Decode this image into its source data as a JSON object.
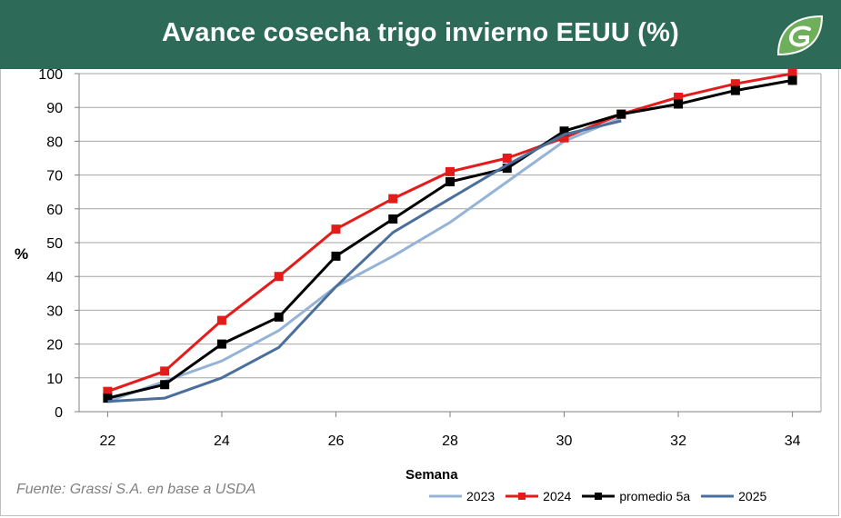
{
  "title": "Avance cosecha trigo invierno EEUU (%)",
  "source": "Fuente: Grassi S.A. en base a USDA",
  "logo_icon": "grassi-leaf-logo",
  "colors": {
    "header": "#2d6a57",
    "grid": "#a6a6a6"
  },
  "chart_data": {
    "type": "line",
    "title": "Avance cosecha trigo invierno EEUU (%)",
    "xlabel": "Semana",
    "ylabel": "%",
    "xlim": [
      21.5,
      34.5
    ],
    "ylim": [
      0,
      100
    ],
    "x_ticks": [
      22,
      24,
      26,
      28,
      30,
      32,
      34
    ],
    "y_ticks": [
      0,
      10,
      20,
      30,
      40,
      50,
      60,
      70,
      80,
      90,
      100
    ],
    "grid": true,
    "legend_position": "bottom",
    "series": [
      {
        "name": "2023",
        "color": "#95b3d7",
        "marker": "none",
        "x": [
          22,
          23,
          24,
          25,
          26,
          27,
          28,
          29,
          30,
          31
        ],
        "y": [
          3,
          9,
          15,
          24,
          37,
          46,
          56,
          68,
          80,
          87
        ]
      },
      {
        "name": "2024",
        "color": "#e41b1b",
        "marker": "square",
        "x": [
          22,
          23,
          24,
          25,
          26,
          27,
          28,
          29,
          30,
          31,
          32,
          33,
          34
        ],
        "y": [
          6,
          12,
          27,
          40,
          54,
          63,
          71,
          75,
          81,
          88,
          93,
          97,
          100
        ]
      },
      {
        "name": "promedio 5a",
        "color": "#000000",
        "marker": "square",
        "x": [
          22,
          23,
          24,
          25,
          26,
          27,
          28,
          29,
          30,
          31,
          32,
          33,
          34
        ],
        "y": [
          4,
          8,
          20,
          28,
          46,
          57,
          68,
          72,
          83,
          88,
          91,
          95,
          98
        ]
      },
      {
        "name": "2025",
        "color": "#4a6f9c",
        "marker": "none",
        "x": [
          22,
          23,
          24,
          25,
          26,
          27,
          28,
          29,
          30,
          31
        ],
        "y": [
          3,
          4,
          10,
          19,
          37,
          53,
          63,
          73,
          82,
          86
        ]
      }
    ]
  }
}
